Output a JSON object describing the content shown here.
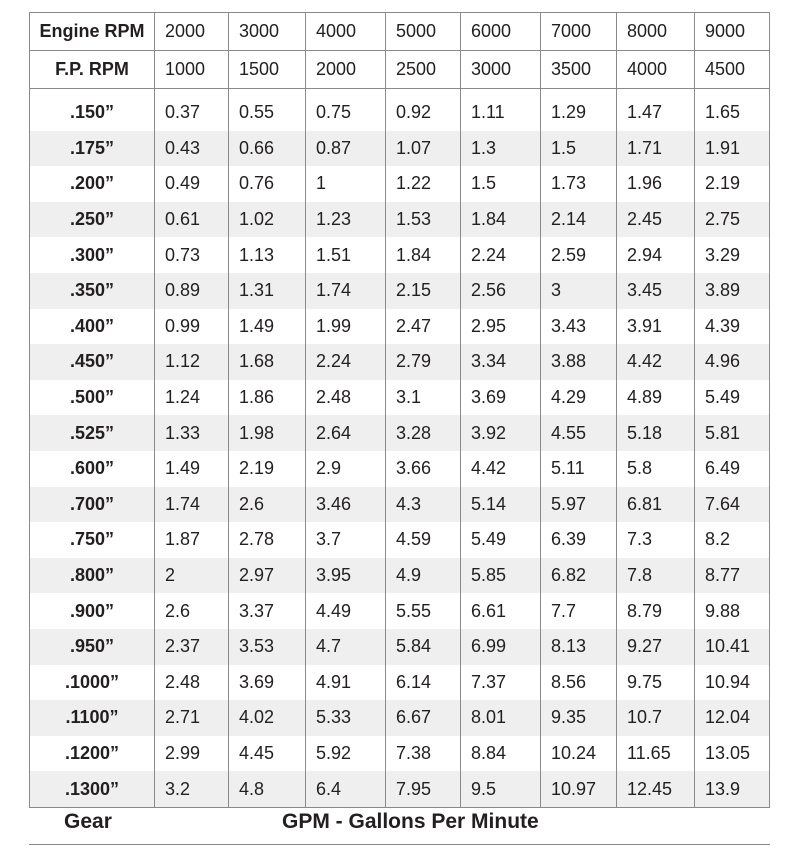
{
  "header_rows": [
    {
      "label": "Engine RPM",
      "values": [
        "2000",
        "3000",
        "4000",
        "5000",
        "6000",
        "7000",
        "8000",
        "9000"
      ]
    },
    {
      "label": "F.P. RPM",
      "values": [
        "1000",
        "1500",
        "2000",
        "2500",
        "3000",
        "3500",
        "4000",
        "4500"
      ]
    }
  ],
  "rows": [
    {
      "label": ".150”",
      "values": [
        "0.37",
        "0.55",
        "0.75",
        "0.92",
        "1.11",
        "1.29",
        "1.47",
        "1.65"
      ]
    },
    {
      "label": ".175”",
      "values": [
        "0.43",
        "0.66",
        "0.87",
        "1.07",
        "1.3",
        "1.5",
        "1.71",
        "1.91"
      ]
    },
    {
      "label": ".200”",
      "values": [
        "0.49",
        "0.76",
        "1",
        "1.22",
        "1.5",
        "1.73",
        "1.96",
        "2.19"
      ]
    },
    {
      "label": ".250”",
      "values": [
        "0.61",
        "1.02",
        "1.23",
        "1.53",
        "1.84",
        "2.14",
        "2.45",
        "2.75"
      ]
    },
    {
      "label": ".300”",
      "values": [
        "0.73",
        "1.13",
        "1.51",
        "1.84",
        "2.24",
        "2.59",
        "2.94",
        "3.29"
      ]
    },
    {
      "label": ".350”",
      "values": [
        "0.89",
        "1.31",
        "1.74",
        "2.15",
        "2.56",
        "3",
        "3.45",
        "3.89"
      ]
    },
    {
      "label": ".400”",
      "values": [
        "0.99",
        "1.49",
        "1.99",
        "2.47",
        "2.95",
        "3.43",
        "3.91",
        "4.39"
      ]
    },
    {
      "label": ".450”",
      "values": [
        "1.12",
        "1.68",
        "2.24",
        "2.79",
        "3.34",
        "3.88",
        "4.42",
        "4.96"
      ]
    },
    {
      "label": ".500”",
      "values": [
        "1.24",
        "1.86",
        "2.48",
        "3.1",
        "3.69",
        "4.29",
        "4.89",
        "5.49"
      ]
    },
    {
      "label": ".525”",
      "values": [
        "1.33",
        "1.98",
        "2.64",
        "3.28",
        "3.92",
        "4.55",
        "5.18",
        "5.81"
      ]
    },
    {
      "label": ".600”",
      "values": [
        "1.49",
        "2.19",
        "2.9",
        "3.66",
        "4.42",
        "5.11",
        "5.8",
        "6.49"
      ]
    },
    {
      "label": ".700”",
      "values": [
        "1.74",
        "2.6",
        "3.46",
        "4.3",
        "5.14",
        "5.97",
        "6.81",
        "7.64"
      ]
    },
    {
      "label": ".750”",
      "values": [
        "1.87",
        "2.78",
        "3.7",
        "4.59",
        "5.49",
        "6.39",
        "7.3",
        "8.2"
      ]
    },
    {
      "label": ".800”",
      "values": [
        "2",
        "2.97",
        "3.95",
        "4.9",
        "5.85",
        "6.82",
        "7.8",
        "8.77"
      ]
    },
    {
      "label": ".900”",
      "values": [
        "2.6",
        "3.37",
        "4.49",
        "5.55",
        "6.61",
        "7.7",
        "8.79",
        "9.88"
      ]
    },
    {
      "label": ".950”",
      "values": [
        "2.37",
        "3.53",
        "4.7",
        "5.84",
        "6.99",
        "8.13",
        "9.27",
        "10.41"
      ]
    },
    {
      "label": ".1000”",
      "values": [
        "2.48",
        "3.69",
        "4.91",
        "6.14",
        "7.37",
        "8.56",
        "9.75",
        "10.94"
      ]
    },
    {
      "label": ".1100”",
      "values": [
        "2.71",
        "4.02",
        "5.33",
        "6.67",
        "8.01",
        "9.35",
        "10.7",
        "12.04"
      ]
    },
    {
      "label": ".1200”",
      "values": [
        "2.99",
        "4.45",
        "5.92",
        "7.38",
        "8.84",
        "10.24",
        "11.65",
        "13.05"
      ]
    },
    {
      "label": ".1300”",
      "values": [
        "3.2",
        "4.8",
        "6.4",
        "7.95",
        "9.5",
        "10.97",
        "12.45",
        "13.9"
      ]
    }
  ],
  "footer": {
    "left": "Gear",
    "center": "GPM - Gallons Per Minute"
  },
  "colors": {
    "stripe": "#efefef",
    "border": "#8a8a8a",
    "text": "#231f20"
  }
}
